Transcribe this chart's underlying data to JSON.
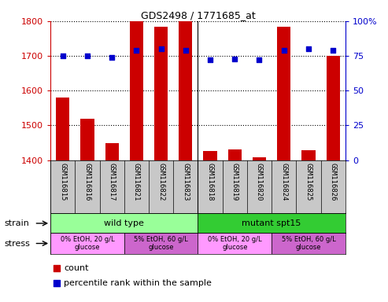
{
  "title": "GDS2498 / 1771685_at",
  "samples": [
    "GSM116815",
    "GSM116816",
    "GSM116817",
    "GSM116821",
    "GSM116822",
    "GSM116823",
    "GSM116818",
    "GSM116819",
    "GSM116820",
    "GSM116824",
    "GSM116825",
    "GSM116826"
  ],
  "counts": [
    1580,
    1520,
    1448,
    1800,
    1785,
    1800,
    1425,
    1430,
    1408,
    1785,
    1428,
    1700
  ],
  "percentiles": [
    75,
    75,
    74,
    79,
    80,
    79,
    72,
    73,
    72,
    79,
    80,
    79
  ],
  "ylim_left": [
    1400,
    1800
  ],
  "ylim_right": [
    0,
    100
  ],
  "yticks_left": [
    1400,
    1500,
    1600,
    1700,
    1800
  ],
  "yticks_right": [
    0,
    25,
    50,
    75,
    100
  ],
  "bar_color": "#cc0000",
  "dot_color": "#0000cc",
  "strain_labels": [
    {
      "text": "wild type",
      "start": 0,
      "end": 6,
      "color": "#99ff99"
    },
    {
      "text": "mutant spt15",
      "start": 6,
      "end": 12,
      "color": "#33cc33"
    }
  ],
  "stress_labels": [
    {
      "text": "0% EtOH, 20 g/L\nglucose",
      "start": 0,
      "end": 3,
      "color": "#ff99ff"
    },
    {
      "text": "5% EtOH, 60 g/L\nglucose",
      "start": 3,
      "end": 6,
      "color": "#cc66cc"
    },
    {
      "text": "0% EtOH, 20 g/L\nglucose",
      "start": 6,
      "end": 9,
      "color": "#ff99ff"
    },
    {
      "text": "5% EtOH, 60 g/L\nglucose",
      "start": 9,
      "end": 12,
      "color": "#cc66cc"
    }
  ],
  "tick_color_left": "#cc0000",
  "tick_color_right": "#0000cc",
  "strain_row_label": "strain",
  "stress_row_label": "stress",
  "legend_count": "count",
  "legend_percentile": "percentile rank within the sample",
  "sample_bg_color": "#c8c8c8",
  "plot_bg_color": "#ffffff"
}
